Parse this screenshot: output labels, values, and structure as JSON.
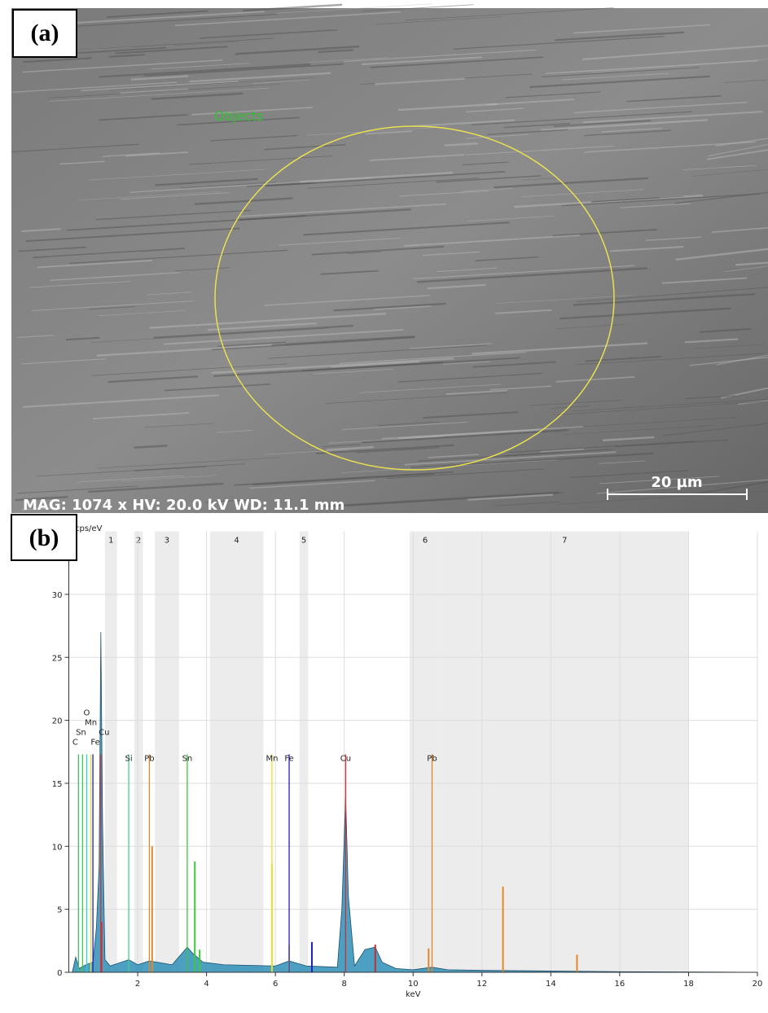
{
  "image_panel": {
    "panel_label": "(a)",
    "objects_label": "Objects",
    "info": "MAG: 1074 x  HV: 20.0 kV  WD: 11.1 mm",
    "scale_bar": "20 µm"
  },
  "chart_data": {
    "type": "area",
    "panel_label": "(b)",
    "x_label": "keV",
    "y_label": "cps/eV",
    "xlim": [
      0,
      20
    ],
    "xticks": [
      2,
      4,
      6,
      8,
      10,
      12,
      14,
      16,
      18,
      20
    ],
    "ylim": [
      0,
      35
    ],
    "yticks": [
      0,
      5,
      10,
      15,
      20,
      25,
      30
    ],
    "grid": true,
    "regions": [
      {
        "label": "1",
        "start": 1.05,
        "end": 1.4
      },
      {
        "label": "2",
        "start": 1.9,
        "end": 2.15
      },
      {
        "label": "3",
        "start": 2.5,
        "end": 3.2
      },
      {
        "label": "4",
        "start": 4.1,
        "end": 5.65
      },
      {
        "label": "5",
        "start": 6.7,
        "end": 6.95
      },
      {
        "label": "6",
        "start": 9.9,
        "end": 10.8
      },
      {
        "label": "7",
        "start": 10.8,
        "end": 18.0
      }
    ],
    "spectrum": {
      "color": "#2f8fb8",
      "x": [
        0.1,
        0.2,
        0.3,
        0.5,
        0.7,
        0.8,
        0.88,
        0.93,
        0.98,
        1.05,
        1.2,
        1.74,
        2.0,
        2.34,
        3.0,
        3.44,
        3.6,
        3.9,
        4.5,
        6.0,
        6.4,
        6.9,
        7.8,
        7.93,
        8.04,
        8.12,
        8.3,
        8.6,
        8.9,
        9.1,
        9.5,
        10.0,
        10.55,
        11.0,
        12.0,
        14.0,
        16.0,
        20.0
      ],
      "values": [
        0,
        1.2,
        0.3,
        0.6,
        0.8,
        3.5,
        8.4,
        27,
        12,
        1,
        0.5,
        1.0,
        0.6,
        0.9,
        0.6,
        2,
        1.5,
        0.8,
        0.6,
        0.5,
        0.9,
        0.5,
        0.4,
        5,
        14,
        6,
        0.5,
        1.8,
        2,
        0.8,
        0.3,
        0.2,
        0.4,
        0.2,
        0.15,
        0.1,
        0.05,
        0
      ]
    },
    "peaks": {
      "x": [
        0.95,
        2.42,
        3.66,
        3.8,
        5.9,
        6.4,
        7.06,
        8.9,
        10.45,
        12.61,
        14.76
      ],
      "values": [
        4,
        10,
        8.8,
        1.8,
        8.6,
        2.2,
        2.4,
        2.2,
        1.9,
        6.8,
        1.4
      ],
      "colors": [
        "#d23030",
        "#e0882a",
        "#3cc83c",
        "#3cc83c",
        "#e6e02a",
        "#e6e02a",
        "#2020c0",
        "#c03030",
        "#e0882a",
        "#e0882a",
        "#e0882a"
      ]
    },
    "marker_height": 17.3,
    "markers": [
      {
        "label": "C",
        "x": 0.28,
        "color": "#40c070"
      },
      {
        "label": "Sn",
        "x": 0.4,
        "color": "#3cc83c"
      },
      {
        "label": "O",
        "x": 0.52,
        "color": "#30d0d0"
      },
      {
        "label": "Mn",
        "x": 0.64,
        "color": "#e6e02a"
      },
      {
        "label": "Fe",
        "x": 0.7,
        "color": "#2020c0"
      },
      {
        "label": "Cu",
        "x": 0.93,
        "color": "#d23030"
      },
      {
        "label": "Si",
        "x": 1.74,
        "color": "#40d090"
      },
      {
        "label": "Pb",
        "x": 2.34,
        "color": "#e0882a"
      },
      {
        "label": "Sn",
        "x": 3.44,
        "color": "#3cc83c"
      },
      {
        "label": "Mn",
        "x": 5.9,
        "color": "#e6e02a"
      },
      {
        "label": "Fe",
        "x": 6.4,
        "color": "#2020c0"
      },
      {
        "label": "Cu",
        "x": 8.04,
        "color": "#d23030"
      },
      {
        "label": "Pb",
        "x": 10.55,
        "color": "#e0882a"
      }
    ]
  }
}
